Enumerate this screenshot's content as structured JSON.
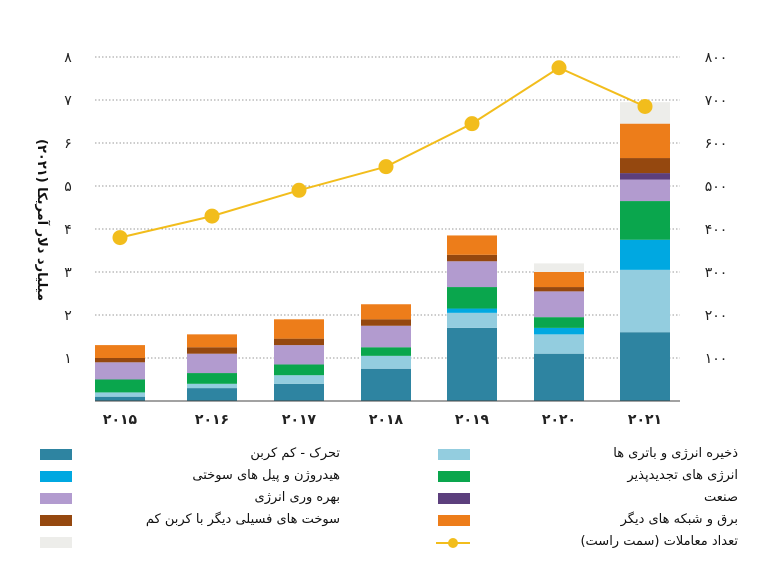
{
  "chart_data": {
    "type": "bar",
    "stacked": true,
    "ylabel": "میلیارد دلار آمریکا (۲۰۲۱)",
    "y_left": {
      "range": [
        0,
        8
      ],
      "ticks": [
        "",
        "۱",
        "۲",
        "۳",
        "۴",
        "۵",
        "۶",
        "۷",
        "۸"
      ]
    },
    "y_right": {
      "range": [
        0,
        800
      ],
      "ticks": [
        "۱۰۰",
        "۲۰۰",
        "۳۰۰",
        "۴۰۰",
        "۵۰۰",
        "۶۰۰",
        "۷۰۰",
        "۸۰۰"
      ]
    },
    "categories": [
      "۲۰۱۵",
      "۲۰۱۶",
      "۲۰۱۷",
      "۲۰۱۸",
      "۲۰۱۹",
      "۲۰۲۰",
      "۲۰۲۱"
    ],
    "series": [
      {
        "name": "تحرک - کم کربن",
        "color": "#2e84a1",
        "values": [
          0.1,
          0.3,
          0.4,
          0.75,
          1.7,
          1.1,
          1.6
        ]
      },
      {
        "name": "ذخیره انرژی و باتری ها",
        "color": "#93cddf",
        "values": [
          0.1,
          0.1,
          0.2,
          0.3,
          0.35,
          0.45,
          1.45
        ]
      },
      {
        "name": "هیدروژن و پیل های سوختی",
        "color": "#00a8e1",
        "values": [
          0.0,
          0.0,
          0.0,
          0.0,
          0.1,
          0.15,
          0.7
        ]
      },
      {
        "name": "انرژی های تجدیدپذیر",
        "color": "#0aa64d",
        "values": [
          0.3,
          0.25,
          0.25,
          0.2,
          0.5,
          0.25,
          0.9
        ]
      },
      {
        "name": "بهره وری انرژی",
        "color": "#b29bcf",
        "values": [
          0.4,
          0.45,
          0.45,
          0.5,
          0.6,
          0.6,
          0.5
        ]
      },
      {
        "name": "صنعت",
        "color": "#5c3f7d",
        "values": [
          0.0,
          0.0,
          0.0,
          0.0,
          0.0,
          0.0,
          0.15
        ]
      },
      {
        "name": "سوخت های فسیلی دیگر با کربن کم",
        "color": "#95480f",
        "values": [
          0.1,
          0.15,
          0.15,
          0.15,
          0.15,
          0.1,
          0.35
        ]
      },
      {
        "name": "برق و شبکه های دیگر",
        "color": "#ed7d1a",
        "values": [
          0.3,
          0.3,
          0.45,
          0.35,
          0.45,
          0.35,
          0.8
        ]
      },
      {
        "name": "",
        "color": "#ededea",
        "values": [
          0.0,
          0.0,
          0.0,
          0.0,
          0.0,
          0.2,
          0.5
        ]
      }
    ],
    "line": {
      "name": "تعداد معاملات (سمت راست)",
      "color": "#f2bd1c",
      "axis": "right",
      "values": [
        380,
        430,
        490,
        545,
        645,
        775,
        685
      ]
    },
    "grid": true
  }
}
